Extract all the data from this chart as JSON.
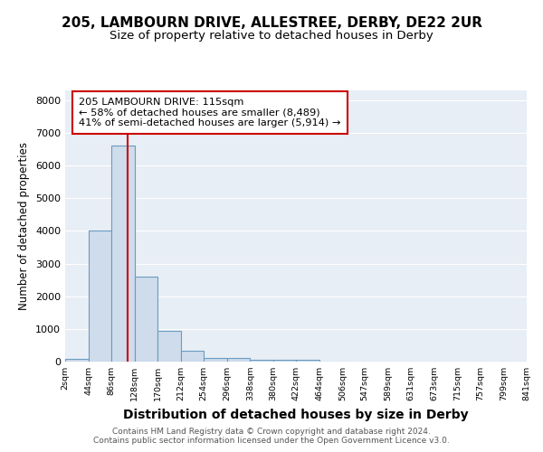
{
  "title1": "205, LAMBOURN DRIVE, ALLESTREE, DERBY, DE22 2UR",
  "title2": "Size of property relative to detached houses in Derby",
  "xlabel": "Distribution of detached houses by size in Derby",
  "ylabel": "Number of detached properties",
  "footer1": "Contains HM Land Registry data © Crown copyright and database right 2024.",
  "footer2": "Contains public sector information licensed under the Open Government Licence v3.0.",
  "annotation_line1": "205 LAMBOURN DRIVE: 115sqm",
  "annotation_line2": "← 58% of detached houses are smaller (8,489)",
  "annotation_line3": "41% of semi-detached houses are larger (5,914) →",
  "bar_edges": [
    2,
    44,
    86,
    128,
    170,
    212,
    254,
    296,
    338,
    380,
    422,
    464,
    506,
    547,
    589,
    631,
    673,
    715,
    757,
    799,
    841
  ],
  "bar_heights": [
    80,
    4000,
    6600,
    2600,
    950,
    320,
    120,
    100,
    60,
    60,
    60,
    5,
    5,
    2,
    2,
    2,
    2,
    2,
    2,
    2
  ],
  "bar_color": "#cfdcec",
  "bar_edge_color": "#6a9cc0",
  "red_line_x": 115,
  "ylim": [
    0,
    8300
  ],
  "yticks": [
    0,
    1000,
    2000,
    3000,
    4000,
    5000,
    6000,
    7000,
    8000
  ],
  "background_color": "#ffffff",
  "plot_bg_color": "#e8eef5",
  "grid_color": "#ffffff",
  "annotation_box_facecolor": "#ffffff",
  "annotation_box_edge": "#cc0000",
  "red_line_color": "#cc0000",
  "title1_fontsize": 11,
  "title2_fontsize": 9.5,
  "xlabel_fontsize": 10,
  "ylabel_fontsize": 8.5,
  "footer_fontsize": 6.5
}
